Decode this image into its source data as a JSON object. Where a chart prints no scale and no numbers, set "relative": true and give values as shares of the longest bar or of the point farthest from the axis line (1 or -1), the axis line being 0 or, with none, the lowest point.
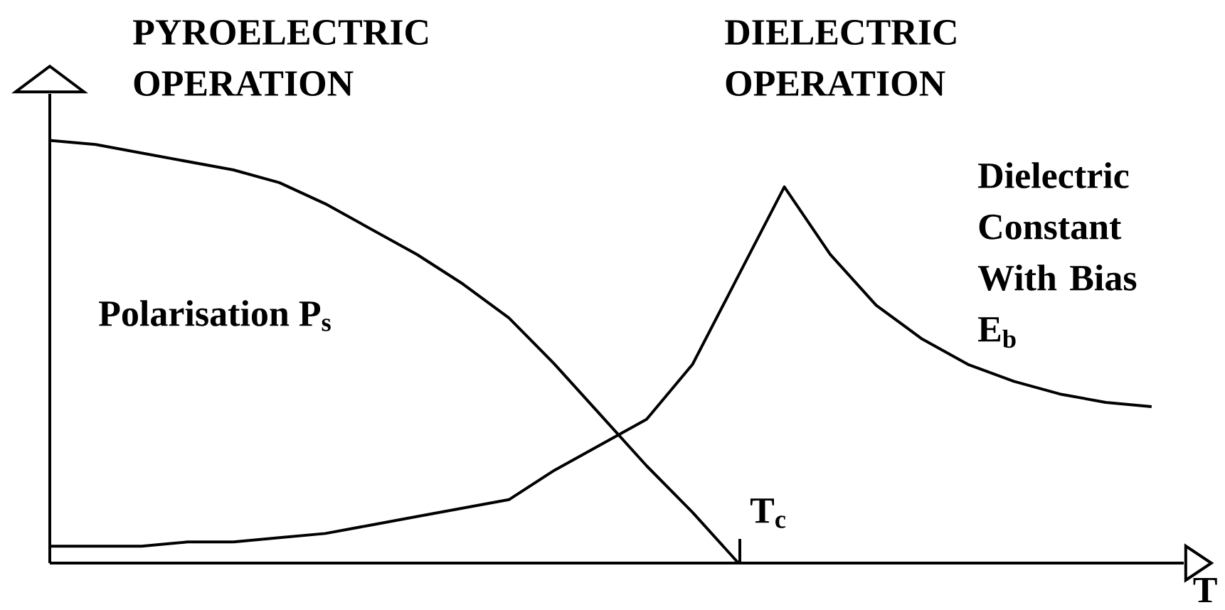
{
  "chart_data": {
    "type": "line",
    "relative": true,
    "xlabel": "T",
    "categories": [
      null,
      null,
      null,
      null,
      null,
      null,
      null,
      null,
      null,
      null,
      null,
      null,
      null,
      null,
      null,
      null,
      null,
      null,
      null,
      null,
      null,
      null,
      null,
      null,
      null
    ],
    "series": [
      {
        "name": "Polarisation P$_{s}$",
        "color": "#000000",
        "values": [
          1.0,
          0.99,
          0.97,
          0.95,
          0.93,
          0.9,
          0.85,
          0.79,
          0.73,
          0.66,
          0.58,
          0.47,
          0.35,
          0.23,
          0.12,
          0,
          null,
          null,
          null,
          null,
          null,
          null,
          null,
          null,
          null
        ]
      },
      {
        "name": "Dielectric Constant With Bias E$_{b}$",
        "color": "#000000",
        "values": [
          0.04,
          0.04,
          0.04,
          0.05,
          0.05,
          0.06,
          0.07,
          0.09,
          0.11,
          0.13,
          0.15,
          0.22,
          0.28,
          0.34,
          0.47,
          0.68,
          0.89,
          0.73,
          0.61,
          0.53,
          0.47,
          0.43,
          0.4,
          0.38,
          0.37
        ]
      }
    ],
    "annotations": [
      "PYROELECTRIC OPERATION",
      "DIELECTRIC OPERATION",
      "T$_{c}$"
    ]
  }
}
